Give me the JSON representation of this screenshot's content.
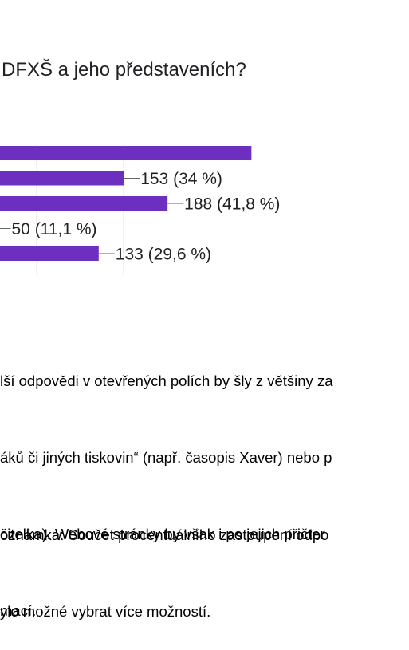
{
  "chart_data": {
    "type": "bar",
    "orientation": "horizontal",
    "title": "DFXŠ a jeho představeních?",
    "bar_color": "#6c2fc0",
    "grid": true,
    "axis_max": 450,
    "bars": [
      {
        "value": 255,
        "label": ""
      },
      {
        "value": 153,
        "label": "153 (34 %)"
      },
      {
        "value": 188,
        "label": "188 (41,8 %)"
      },
      {
        "value": 50,
        "label": "50 (11,1 %)"
      },
      {
        "value": 133,
        "label": "133 (29,6 %)"
      }
    ]
  },
  "text": {
    "lines": [
      "lší odpovědi v otevřených polích by šly z většiny za",
      "áků či jiných tiskovin“ (např. časopis Xaver) nebo p",
      "čitelka). Webové stránky by však i po jejich přičter",
      "mací."
    ]
  },
  "note": {
    "lines": [
      "oznámka: Součet procentuálního zastoupení odpo",
      "ylo možné vybrat více možností."
    ]
  }
}
